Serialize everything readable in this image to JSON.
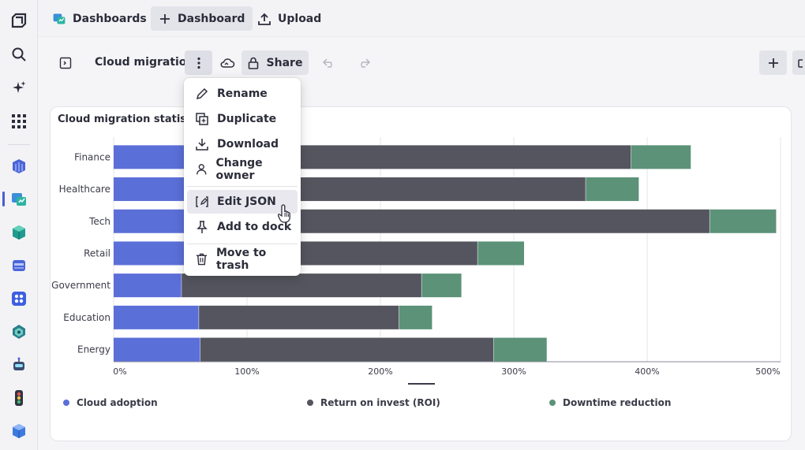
{
  "topbar": {
    "dashboards_label": "Dashboards",
    "new_dashboard_label": "Dashboard",
    "upload_label": "Upload"
  },
  "toolbar": {
    "title": "Cloud migration",
    "share_label": "Share"
  },
  "menu": {
    "items": [
      {
        "label": "Rename",
        "icon": "pencil-icon"
      },
      {
        "label": "Duplicate",
        "icon": "duplicate-icon"
      },
      {
        "label": "Download",
        "icon": "download-icon"
      },
      {
        "label": "Change owner",
        "icon": "person-icon"
      },
      {
        "label": "Edit JSON",
        "icon": "edit-json-icon"
      },
      {
        "label": "Add to dock",
        "icon": "pin-icon"
      },
      {
        "label": "Move to trash",
        "icon": "trash-icon"
      }
    ]
  },
  "card": {
    "title": "Cloud migration statistics"
  },
  "chart_data": {
    "type": "bar",
    "orientation": "horizontal",
    "stacked": true,
    "categories": [
      "Finance",
      "Healthcare",
      "Tech",
      "Retail",
      "Government",
      "Education",
      "Energy"
    ],
    "series": [
      {
        "name": "Cloud adoption",
        "color": "#5b6fd8",
        "values": [
          70,
          62,
          75,
          55,
          51,
          64,
          65
        ]
      },
      {
        "name": "Return on invest (ROI)",
        "color": "#55555f",
        "values": [
          318,
          292,
          372,
          218,
          180,
          150,
          220
        ]
      },
      {
        "name": "Downtime reduction",
        "color": "#5b9278",
        "values": [
          45,
          40,
          50,
          35,
          30,
          25,
          40
        ]
      }
    ],
    "xlim": [
      0,
      500
    ],
    "xticks": [
      "0%",
      "100%",
      "200%",
      "300%",
      "400%",
      "500%"
    ],
    "grid": true,
    "legend_position": "bottom"
  }
}
